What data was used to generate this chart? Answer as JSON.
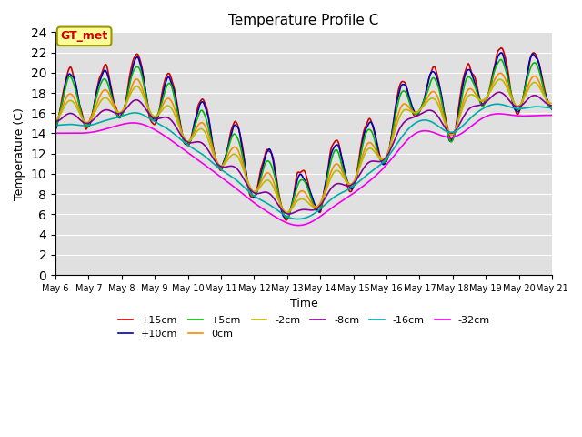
{
  "title": "Temperature Profile C",
  "xlabel": "Time",
  "ylabel": "Temperature (C)",
  "ylim": [
    0,
    24
  ],
  "bg_color": "#e0e0e0",
  "series_labels": [
    "+15cm",
    "+10cm",
    "+5cm",
    "0cm",
    "-2cm",
    "-8cm",
    "-16cm",
    "-32cm"
  ],
  "series_colors": [
    "#cc0000",
    "#0000bb",
    "#00bb00",
    "#ff8800",
    "#bbbb00",
    "#880099",
    "#00aaaa",
    "#ee00ee"
  ],
  "xtick_labels": [
    "May 6",
    "May 7",
    "May 8",
    "May 9",
    "May 10",
    "May 11",
    "May 12",
    "May 13",
    "May 14",
    "May 15",
    "May 16",
    "May 17",
    "May 18",
    "May 19",
    "May 20",
    "May 21"
  ],
  "annotation_text": "GT_met",
  "annotation_color": "#cc0000",
  "annotation_bg": "#ffff99",
  "annotation_border": "#999900"
}
